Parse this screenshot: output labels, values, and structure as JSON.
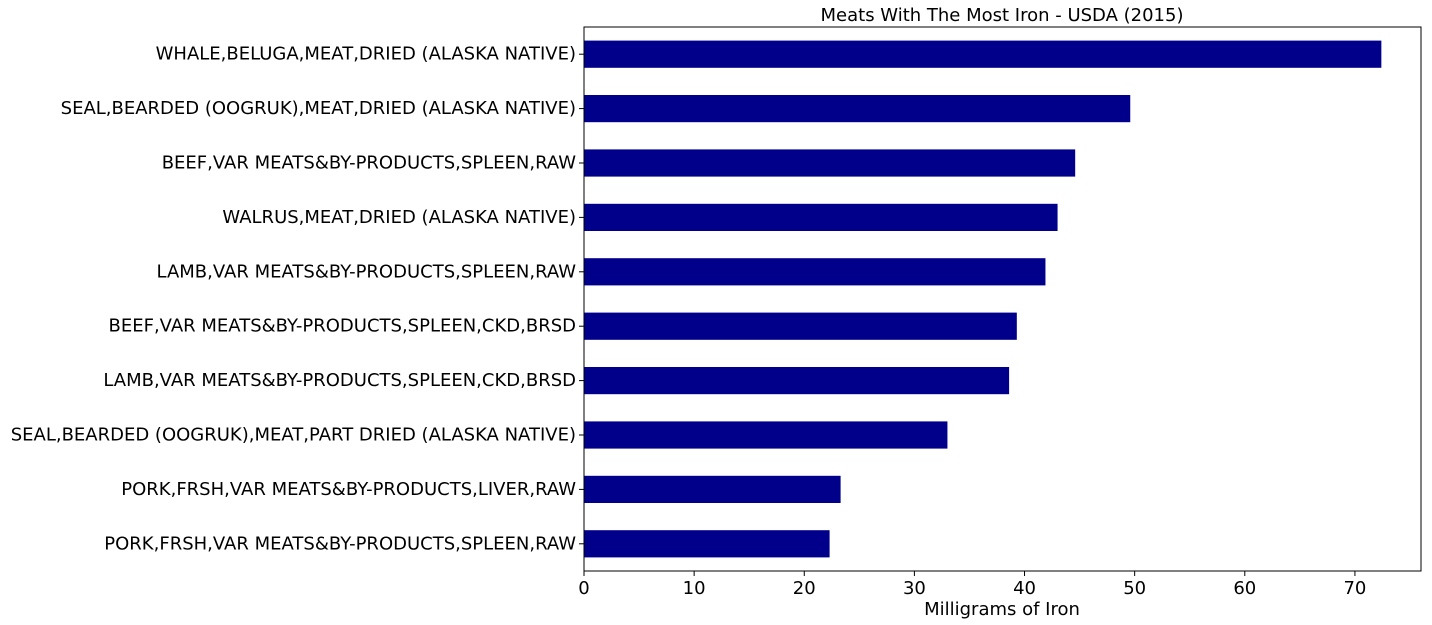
{
  "chart_data": {
    "type": "bar",
    "orientation": "horizontal",
    "title": "Meats With The Most Iron - USDA (2015)",
    "xlabel": "Milligrams of Iron",
    "ylabel": "",
    "xlim": [
      0,
      76
    ],
    "xticks": [
      0,
      10,
      20,
      30,
      40,
      50,
      60,
      70
    ],
    "grid": false,
    "legend": "none",
    "bar_color": "#00008b",
    "categories": [
      "WHALE,BELUGA,MEAT,DRIED (ALASKA NATIVE)",
      "SEAL,BEARDED (OOGRUK),MEAT,DRIED (ALASKA NATIVE)",
      "BEEF,VAR MEATS&BY-PRODUCTS,SPLEEN,RAW",
      "WALRUS,MEAT,DRIED (ALASKA NATIVE)",
      "LAMB,VAR MEATS&BY-PRODUCTS,SPLEEN,RAW",
      "BEEF,VAR MEATS&BY-PRODUCTS,SPLEEN,CKD,BRSD",
      "LAMB,VAR MEATS&BY-PRODUCTS,SPLEEN,CKD,BRSD",
      "SEAL,BEARDED (OOGRUK),MEAT,PART DRIED (ALASKA NATIVE)",
      "PORK,FRSH,VAR MEATS&BY-PRODUCTS,LIVER,RAW",
      "PORK,FRSH,VAR MEATS&BY-PRODUCTS,SPLEEN,RAW"
    ],
    "values": [
      72.4,
      49.6,
      44.6,
      43.0,
      41.9,
      39.3,
      38.6,
      33.0,
      23.3,
      22.3
    ]
  }
}
